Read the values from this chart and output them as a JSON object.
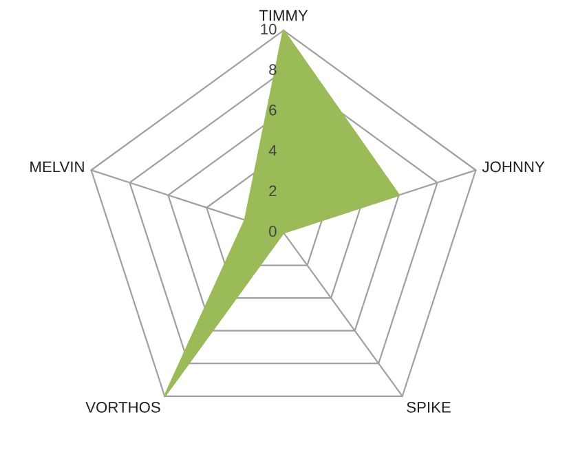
{
  "chart_data": {
    "type": "radar",
    "categories": [
      "TIMMY",
      "JOHNNY",
      "SPIKE",
      "VORTHOS",
      "MELVIN"
    ],
    "series": [
      {
        "color": "#9bbb59",
        "values": [
          10,
          6,
          0,
          10,
          2
        ]
      }
    ],
    "ylim": [
      0,
      10
    ],
    "yticks": [
      0,
      2,
      4,
      6,
      8,
      10
    ],
    "grid": true
  }
}
